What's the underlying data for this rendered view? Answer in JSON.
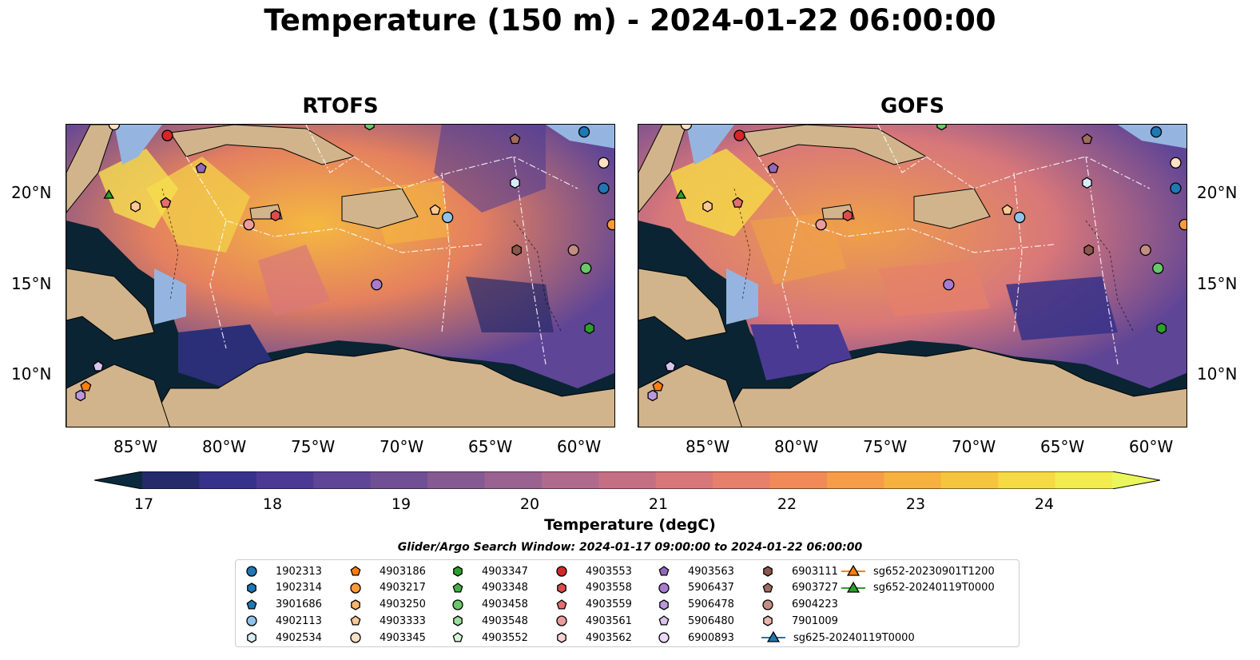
{
  "title": "Temperature (150 m) - 2024-01-22 06:00:00",
  "panels": [
    {
      "title": "RTOFS"
    },
    {
      "title": "GOFS"
    }
  ],
  "lat_labels": [
    "20°N",
    "15°N",
    "10°N"
  ],
  "lon_labels": [
    "85°W",
    "80°W",
    "75°W",
    "70°W",
    "65°W",
    "60°W"
  ],
  "colorbar": {
    "label": "Temperature (degC)",
    "ticks": [
      "17",
      "18",
      "19",
      "20",
      "21",
      "22",
      "23",
      "24"
    ],
    "colors": [
      "#0b2a3e",
      "#252a6a",
      "#36318a",
      "#4b3a94",
      "#5f4596",
      "#714f94",
      "#855a92",
      "#9a6290",
      "#b06a8c",
      "#c56f84",
      "#d8777a",
      "#e6806a",
      "#f08a58",
      "#f59d48",
      "#f6b13e",
      "#f6c53e",
      "#f5da44",
      "#f2ec4e",
      "#eaf65a"
    ],
    "min": 16.5,
    "max": 24.5
  },
  "search_window": "Glider/Argo Search Window: 2024-01-17 09:00:00 to 2024-01-22 06:00:00",
  "legend": [
    {
      "label": "1902313",
      "color": "#1f77b4",
      "shape": "circle"
    },
    {
      "label": "1902314",
      "color": "#1f77b4",
      "shape": "hexagon"
    },
    {
      "label": "3901686",
      "color": "#1f77b4",
      "shape": "pentagon"
    },
    {
      "label": "4902113",
      "color": "#8fc3e9",
      "shape": "circle"
    },
    {
      "label": "4902534",
      "color": "#d8ecf8",
      "shape": "hexagon"
    },
    {
      "label": "4903186",
      "color": "#ff7f0e",
      "shape": "pentagon"
    },
    {
      "label": "4903217",
      "color": "#fd9a3a",
      "shape": "circle"
    },
    {
      "label": "4903250",
      "color": "#fdb46c",
      "shape": "hexagon"
    },
    {
      "label": "4903333",
      "color": "#fcc894",
      "shape": "pentagon"
    },
    {
      "label": "4903345",
      "color": "#fde0c3",
      "shape": "circle"
    },
    {
      "label": "4903347",
      "color": "#2ca02c",
      "shape": "hexagon"
    },
    {
      "label": "4903348",
      "color": "#46b046",
      "shape": "pentagon"
    },
    {
      "label": "4903458",
      "color": "#69c869",
      "shape": "circle"
    },
    {
      "label": "4903548",
      "color": "#9be09b",
      "shape": "hexagon"
    },
    {
      "label": "4903552",
      "color": "#d6f5d6",
      "shape": "pentagon"
    },
    {
      "label": "4903553",
      "color": "#d62728",
      "shape": "circle"
    },
    {
      "label": "4903558",
      "color": "#dd4b4b",
      "shape": "hexagon"
    },
    {
      "label": "4903559",
      "color": "#e46e6e",
      "shape": "pentagon"
    },
    {
      "label": "4903561",
      "color": "#ec9b9b",
      "shape": "circle"
    },
    {
      "label": "4903562",
      "color": "#f8d3d3",
      "shape": "hexagon"
    },
    {
      "label": "4903563",
      "color": "#9467bd",
      "shape": "pentagon"
    },
    {
      "label": "5906437",
      "color": "#a77ccf",
      "shape": "circle"
    },
    {
      "label": "5906478",
      "color": "#bb98dc",
      "shape": "hexagon"
    },
    {
      "label": "5906480",
      "color": "#d8c5ee",
      "shape": "pentagon"
    },
    {
      "label": "6900893",
      "color": "#ead9f7",
      "shape": "circle"
    },
    {
      "label": "6903111",
      "color": "#8c564b",
      "shape": "hexagon"
    },
    {
      "label": "6903727",
      "color": "#a06b5f",
      "shape": "pentagon"
    },
    {
      "label": "6904223",
      "color": "#c48e83",
      "shape": "circle"
    },
    {
      "label": "7901009",
      "color": "#e9b8ab",
      "shape": "hexagon"
    },
    {
      "label": "sg625-20240119T0000",
      "color": "#1f77b4",
      "shape": "triangle-line"
    },
    {
      "label": "sg652-20230901T1200",
      "color": "#ff7f0e",
      "shape": "triangle-line"
    },
    {
      "label": "sg652-20240119T0000",
      "color": "#2ca02c",
      "shape": "triangle-line"
    }
  ],
  "markers": [
    {
      "lon": -86.5,
      "lat": 23.8,
      "color": "#fde0c3",
      "shape": "circle"
    },
    {
      "lon": -83.5,
      "lat": 23.2,
      "color": "#d62728",
      "shape": "circle"
    },
    {
      "lon": -81.6,
      "lat": 21.4,
      "color": "#9467bd",
      "shape": "pentagon"
    },
    {
      "lon": -86.8,
      "lat": 19.9,
      "color": "#2ca02c",
      "shape": "triangle"
    },
    {
      "lon": -85.3,
      "lat": 19.3,
      "color": "#fcc894",
      "shape": "hexagon"
    },
    {
      "lon": -83.6,
      "lat": 19.5,
      "color": "#e46e6e",
      "shape": "pentagon"
    },
    {
      "lon": -78.9,
      "lat": 18.3,
      "color": "#ec9b9b",
      "shape": "circle"
    },
    {
      "lon": -77.4,
      "lat": 18.8,
      "color": "#dd4b4b",
      "shape": "hexagon"
    },
    {
      "lon": -72.1,
      "lat": 23.8,
      "color": "#69c869",
      "shape": "hexagon"
    },
    {
      "lon": -68.4,
      "lat": 19.1,
      "color": "#fcc894",
      "shape": "pentagon"
    },
    {
      "lon": -67.7,
      "lat": 18.7,
      "color": "#8fc3e9",
      "shape": "circle"
    },
    {
      "lon": -71.7,
      "lat": 15.0,
      "color": "#a77ccf",
      "shape": "circle"
    },
    {
      "lon": -63.9,
      "lat": 23.0,
      "color": "#a06b5f",
      "shape": "pentagon"
    },
    {
      "lon": -63.9,
      "lat": 20.6,
      "color": "#d8ecf8",
      "shape": "hexagon"
    },
    {
      "lon": -60.0,
      "lat": 23.4,
      "color": "#1f77b4",
      "shape": "circle"
    },
    {
      "lon": -58.9,
      "lat": 21.7,
      "color": "#fde0c3",
      "shape": "circle"
    },
    {
      "lon": -58.9,
      "lat": 20.3,
      "color": "#1f77b4",
      "shape": "circle"
    },
    {
      "lon": -58.4,
      "lat": 18.3,
      "color": "#fd9a3a",
      "shape": "circle"
    },
    {
      "lon": -63.8,
      "lat": 16.9,
      "color": "#8c564b",
      "shape": "hexagon"
    },
    {
      "lon": -60.6,
      "lat": 16.9,
      "color": "#c48e83",
      "shape": "circle"
    },
    {
      "lon": -59.9,
      "lat": 15.9,
      "color": "#69c869",
      "shape": "circle"
    },
    {
      "lon": -59.7,
      "lat": 12.6,
      "color": "#2ca02c",
      "shape": "hexagon"
    },
    {
      "lon": -87.4,
      "lat": 10.5,
      "color": "#d8c5ee",
      "shape": "pentagon"
    },
    {
      "lon": -88.1,
      "lat": 9.4,
      "color": "#ff7f0e",
      "shape": "pentagon"
    },
    {
      "lon": -88.4,
      "lat": 8.9,
      "color": "#bb98dc",
      "shape": "hexagon"
    }
  ]
}
